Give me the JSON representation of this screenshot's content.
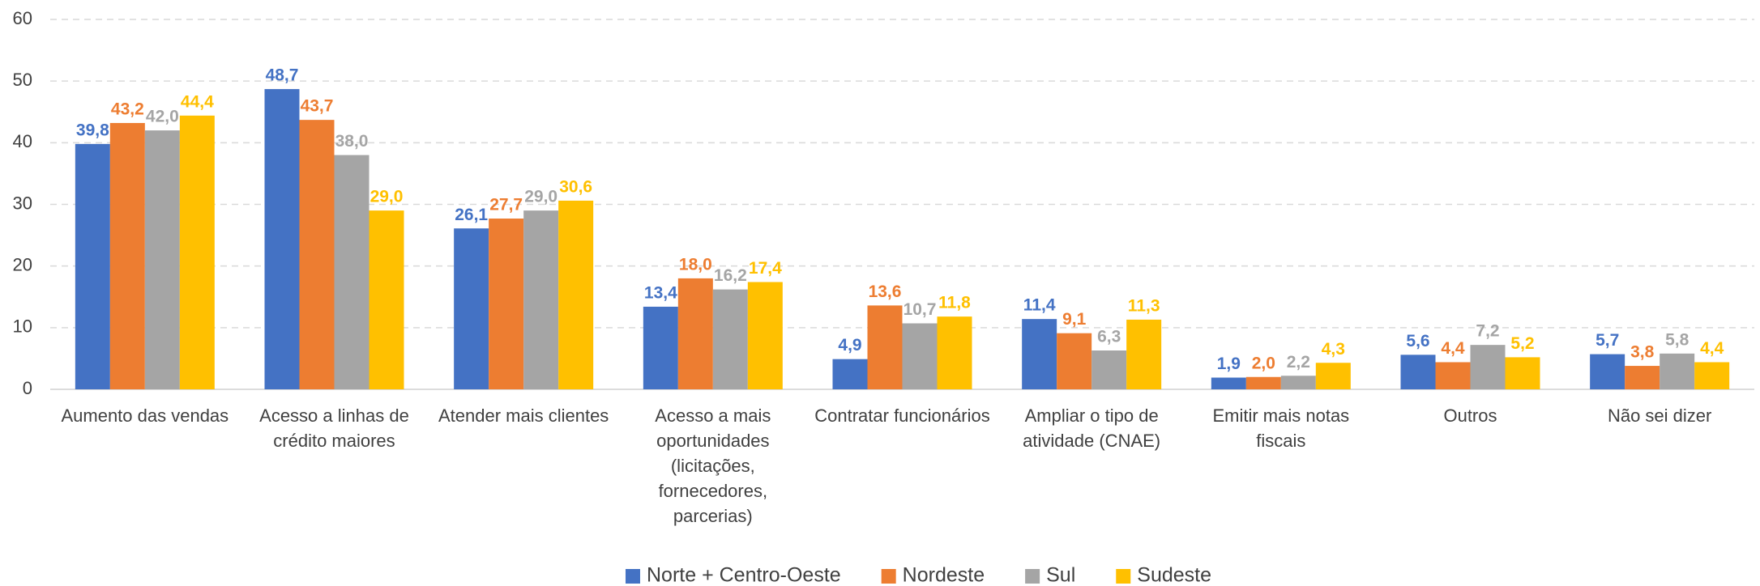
{
  "chart_data": {
    "type": "bar",
    "categories": [
      "Aumento das vendas",
      "Acesso a linhas de crédito maiores",
      "Atender mais clientes",
      "Acesso a mais oportunidades (licitações, fornecedores, parcerias)",
      "Contratar funcionários",
      "Ampliar o tipo de atividade (CNAE)",
      "Emitir mais notas fiscais",
      "Outros",
      "Não sei dizer"
    ],
    "series": [
      {
        "name": "Norte + Centro-Oeste",
        "color": "#4472c4",
        "values": [
          39.8,
          48.7,
          26.1,
          13.4,
          4.9,
          11.4,
          1.9,
          5.6,
          5.7
        ],
        "value_labels": [
          "39,8",
          "48,7",
          "26,1",
          "13,4",
          "4,9",
          "11,4",
          "1,9",
          "5,6",
          "5,7"
        ]
      },
      {
        "name": "Nordeste",
        "color": "#ed7d31",
        "values": [
          43.2,
          43.7,
          27.7,
          18.0,
          13.6,
          9.1,
          2.0,
          4.4,
          3.8
        ],
        "value_labels": [
          "43,2",
          "43,7",
          "27,7",
          "18,0",
          "13,6",
          "9,1",
          "2,0",
          "4,4",
          "3,8"
        ]
      },
      {
        "name": "Sul",
        "color": "#a5a5a5",
        "values": [
          42.0,
          38.0,
          29.0,
          16.2,
          10.7,
          6.3,
          2.2,
          7.2,
          5.8
        ],
        "value_labels": [
          "42,0",
          "38,0",
          "29,0",
          "16,2",
          "10,7",
          "6,3",
          "2,2",
          "7,2",
          "5,8"
        ]
      },
      {
        "name": "Sudeste",
        "color": "#ffc000",
        "values": [
          44.4,
          29.0,
          30.6,
          17.4,
          11.8,
          11.3,
          4.3,
          5.2,
          4.4
        ],
        "value_labels": [
          "44,4",
          "29,0",
          "30,6",
          "17,4",
          "11,8",
          "11,3",
          "4,3",
          "5,2",
          "4,4"
        ]
      }
    ],
    "ylim": [
      0,
      60
    ],
    "yticks": [
      0,
      10,
      20,
      30,
      40,
      50,
      60
    ],
    "grid": true,
    "legend": "bottom"
  }
}
